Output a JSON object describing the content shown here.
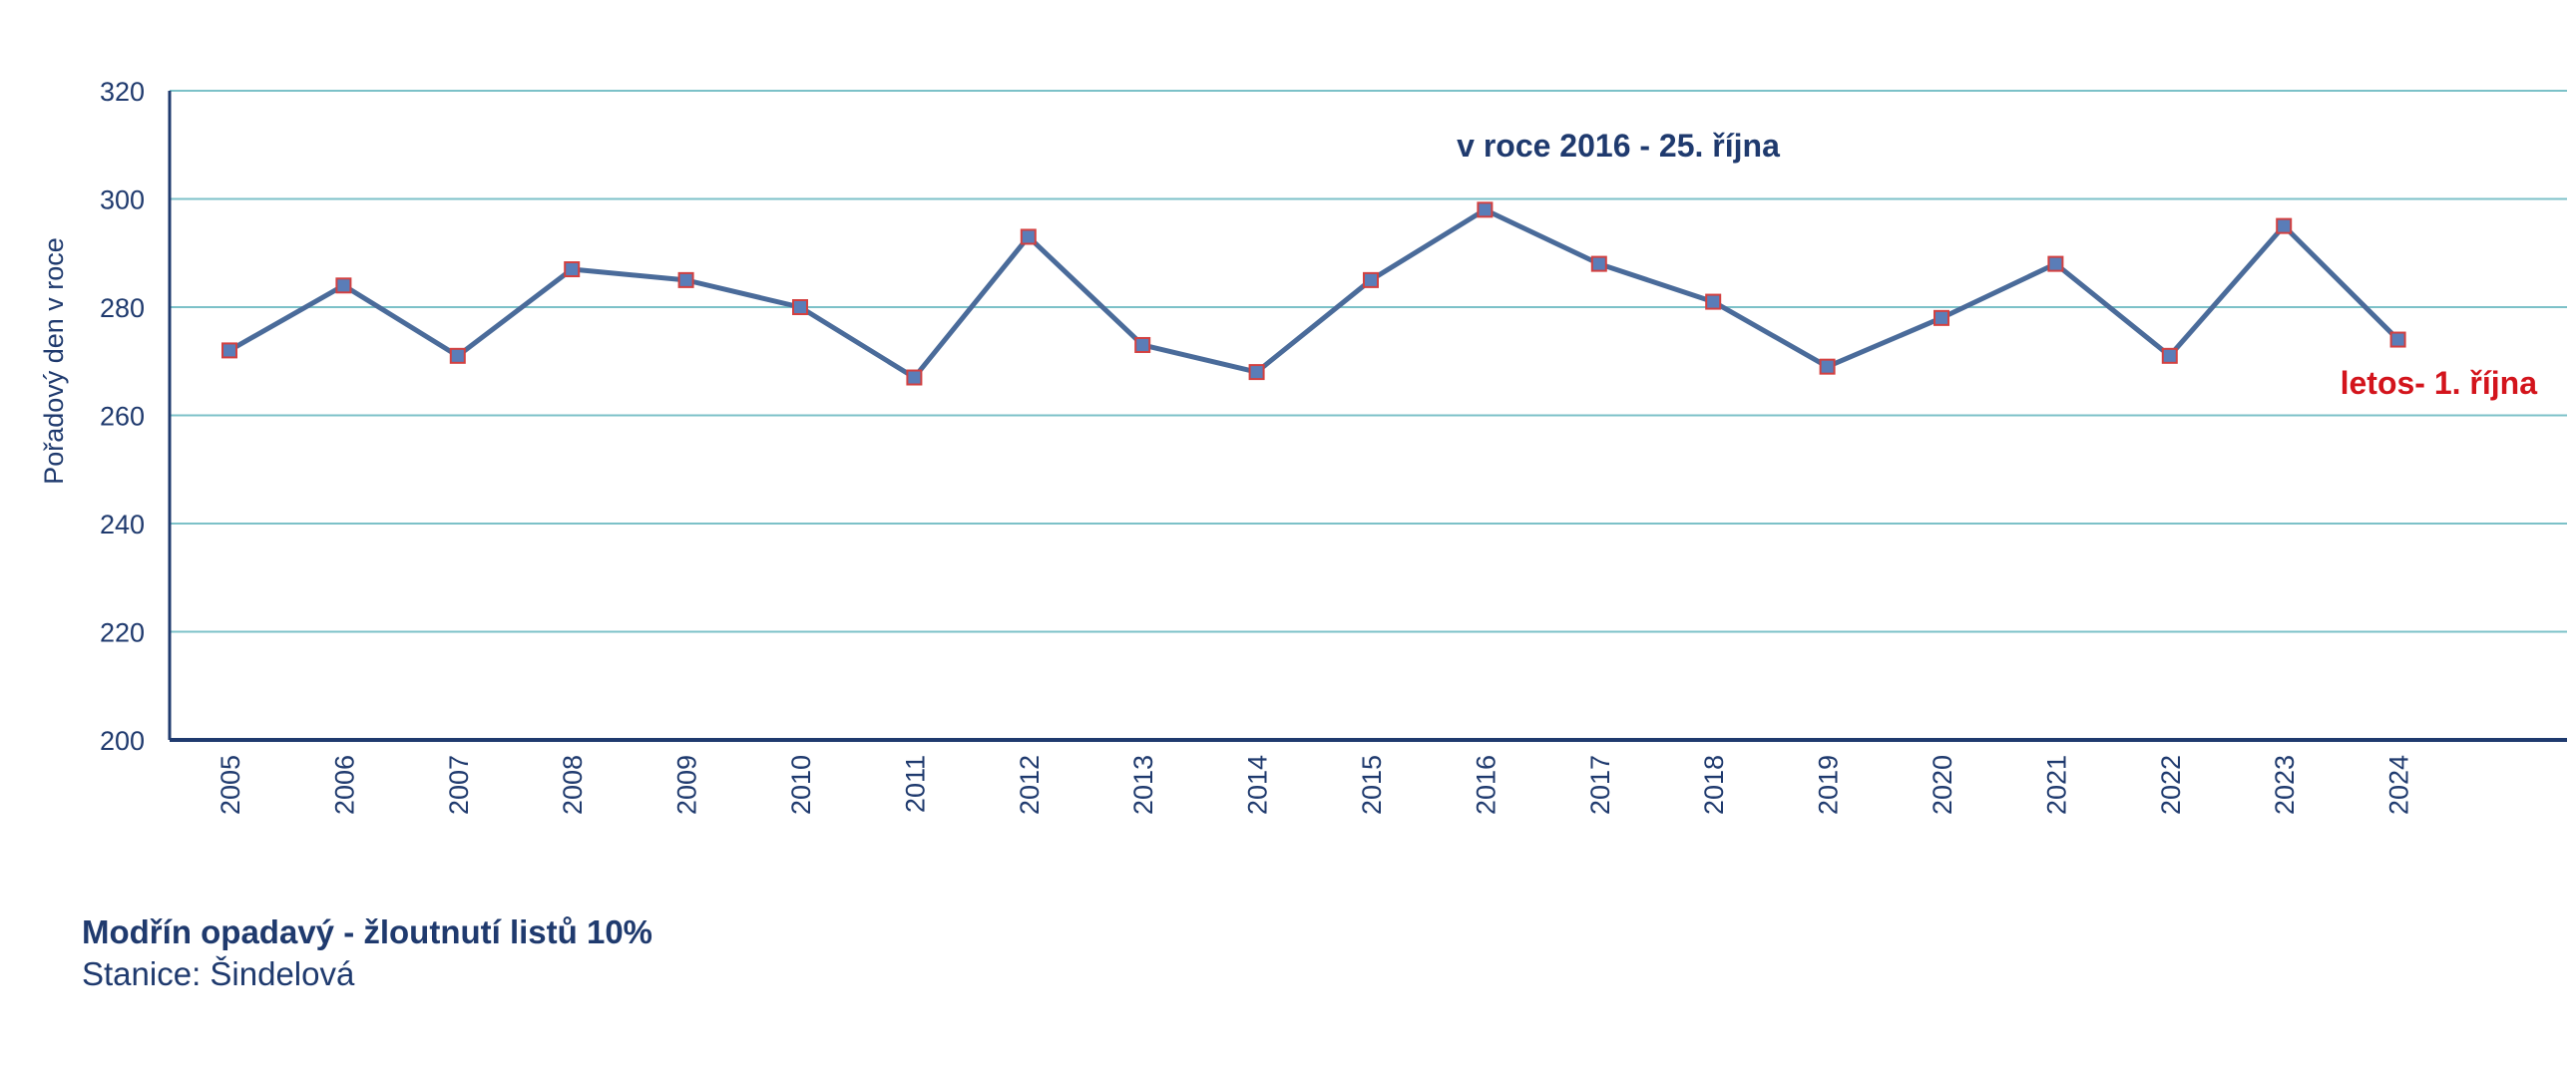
{
  "chart_data": {
    "type": "line",
    "ylabel": "Pořadový den v roce",
    "xlabel": "",
    "ylim": [
      200,
      320
    ],
    "yticks": [
      200,
      220,
      240,
      260,
      280,
      300,
      320
    ],
    "categories": [
      "2005",
      "2006",
      "2007",
      "2008",
      "2009",
      "2010",
      "2011",
      "2012",
      "2013",
      "2014",
      "2015",
      "2016",
      "2017",
      "2018",
      "2019",
      "2020",
      "2021",
      "2022",
      "2023",
      "2024"
    ],
    "series": [
      {
        "values": [
          272,
          284,
          271,
          287,
          285,
          280,
          267,
          293,
          273,
          268,
          285,
          298,
          288,
          281,
          269,
          278,
          288,
          271,
          295,
          274
        ]
      }
    ],
    "grid": true,
    "annotations": [
      {
        "text": "v roce 2016 - 25. října",
        "color": "#1f3a6e"
      },
      {
        "text": "letos- 1. října",
        "color": "#d3141c"
      }
    ],
    "colors": {
      "line": "#4a6b9a",
      "marker_fill": "#5a7db8",
      "marker_edge": "#d34040",
      "grid": "#7cc1c8",
      "axis": "#1f3a6e"
    }
  },
  "caption": {
    "title": "Modřín opadavý - žloutnutí listů 10%",
    "subtitle": "Stanice: Šindelová"
  }
}
